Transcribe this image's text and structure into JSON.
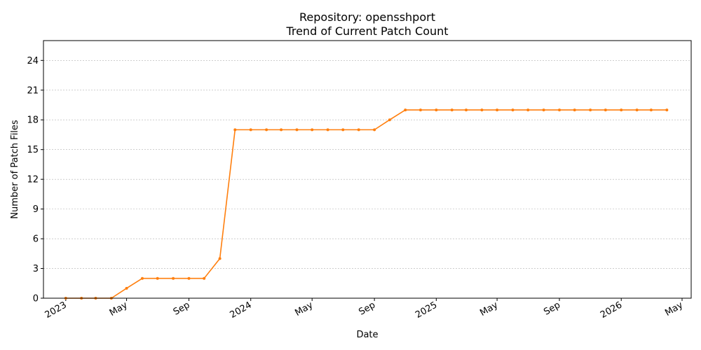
{
  "chart_data": {
    "type": "line",
    "title": "Repository: opensshport",
    "subtitle": "Trend of Current Patch Count",
    "xlabel": "Date",
    "ylabel": "Number of Patch Files",
    "ylim": [
      0,
      26
    ],
    "yticks": [
      0,
      3,
      6,
      9,
      12,
      15,
      18,
      21,
      24
    ],
    "xlim": [
      "2022-11-18",
      "2026-05-19"
    ],
    "xticks": [
      {
        "date": "2023-01-01",
        "label": "2023"
      },
      {
        "date": "2023-05-01",
        "label": "May"
      },
      {
        "date": "2023-09-01",
        "label": "Sep"
      },
      {
        "date": "2024-01-01",
        "label": "2024"
      },
      {
        "date": "2024-05-01",
        "label": "May"
      },
      {
        "date": "2024-09-01",
        "label": "Sep"
      },
      {
        "date": "2025-01-01",
        "label": "2025"
      },
      {
        "date": "2025-05-01",
        "label": "May"
      },
      {
        "date": "2025-09-01",
        "label": "Sep"
      },
      {
        "date": "2026-01-01",
        "label": "2026"
      },
      {
        "date": "2026-05-01",
        "label": "May"
      }
    ],
    "grid": "y",
    "color": "#ff7f0e",
    "series": [
      {
        "x": [
          "2023-01-01",
          "2023-02-01",
          "2023-03-01",
          "2023-04-01",
          "2023-05-01",
          "2023-06-01",
          "2023-07-01",
          "2023-08-01",
          "2023-09-01",
          "2023-10-01",
          "2023-11-01",
          "2023-12-01",
          "2024-01-01",
          "2024-02-01",
          "2024-03-01",
          "2024-04-01",
          "2024-05-01",
          "2024-06-01",
          "2024-07-01",
          "2024-08-01",
          "2024-09-01",
          "2024-10-01",
          "2024-11-01",
          "2024-12-01",
          "2025-01-01",
          "2025-02-01",
          "2025-03-01",
          "2025-04-01",
          "2025-05-01",
          "2025-06-01",
          "2025-07-01",
          "2025-08-01",
          "2025-09-01",
          "2025-10-01",
          "2025-11-01",
          "2025-12-01",
          "2026-01-01",
          "2026-02-01",
          "2026-03-01",
          "2026-04-01"
        ],
        "y": [
          0,
          0,
          0,
          0,
          1,
          2,
          2,
          2,
          2,
          2,
          4,
          17,
          17,
          17,
          17,
          17,
          17,
          17,
          17,
          17,
          17,
          18,
          19,
          19,
          19,
          19,
          19,
          19,
          19,
          19,
          19,
          19,
          19,
          19,
          19,
          19,
          19,
          19,
          19,
          19
        ]
      }
    ]
  }
}
